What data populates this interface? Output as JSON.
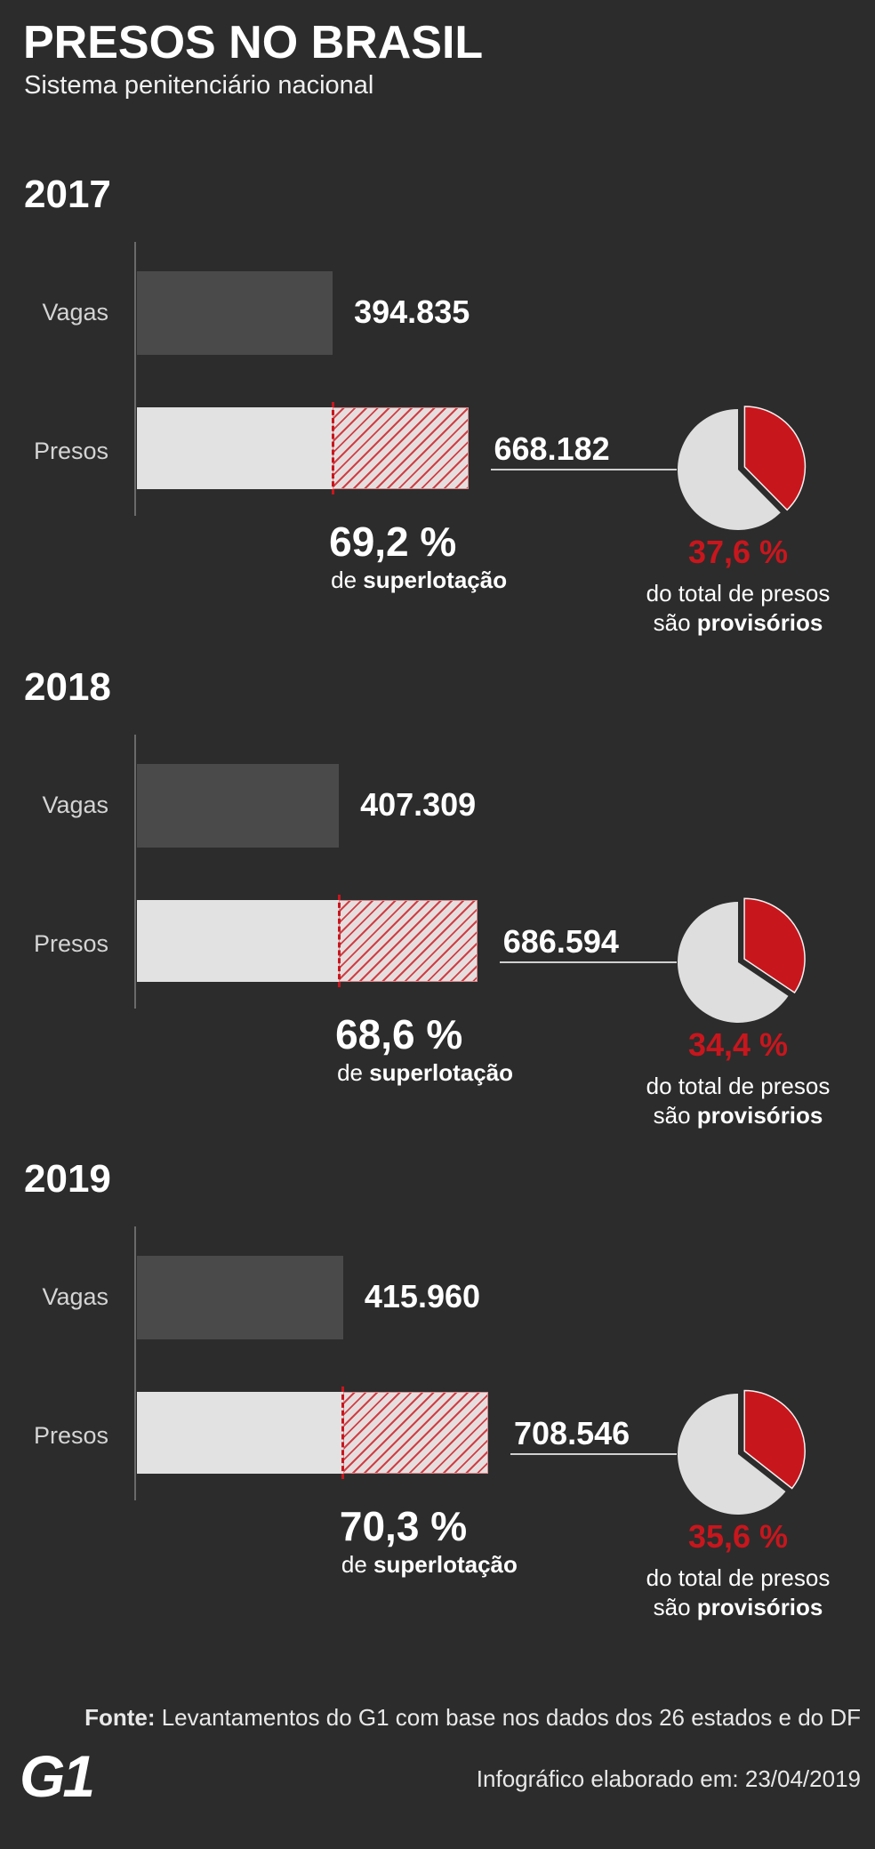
{
  "header": {
    "title": "PRESOS NO BRASIL",
    "subtitle": "Sistema penitenciário nacional"
  },
  "labels": {
    "superlotacao_prefix": "de",
    "superlotacao_bold": "superlotação",
    "provisorios_line1": "do total de presos",
    "provisorios_prefix": "são",
    "provisorios_bold": "provisórios"
  },
  "colors": {
    "background": "#2c2c2c",
    "vagas_bar": "#4a4a4a",
    "presos_bar": "#e2e2e2",
    "accent_red": "#c8161d",
    "pie_base": "#dedede",
    "text": "#ffffff"
  },
  "chart_data": [
    {
      "type": "bar",
      "title": "2017",
      "categories": [
        "Vagas",
        "Presos"
      ],
      "values": [
        394835,
        668182
      ],
      "value_labels": [
        "394.835",
        "668.182"
      ],
      "overcrowding_percent": 69.2,
      "overcrowding_label": "69,2 %",
      "pie": {
        "type": "pie",
        "values": [
          37.6,
          62.4
        ],
        "label": "37,6 %"
      }
    },
    {
      "type": "bar",
      "title": "2018",
      "categories": [
        "Vagas",
        "Presos"
      ],
      "values": [
        407309,
        686594
      ],
      "value_labels": [
        "407.309",
        "686.594"
      ],
      "overcrowding_percent": 68.6,
      "overcrowding_label": "68,6 %",
      "pie": {
        "type": "pie",
        "values": [
          34.4,
          65.6
        ],
        "label": "34,4 %"
      }
    },
    {
      "type": "bar",
      "title": "2019",
      "categories": [
        "Vagas",
        "Presos"
      ],
      "values": [
        415960,
        708546
      ],
      "value_labels": [
        "415.960",
        "708.546"
      ],
      "overcrowding_percent": 70.3,
      "overcrowding_label": "70,3 %",
      "pie": {
        "type": "pie",
        "values": [
          35.6,
          64.4
        ],
        "label": "35,6 %"
      }
    }
  ],
  "footer": {
    "source_label": "Fonte:",
    "source_text": "Levantamentos do G1 com base nos dados dos 26 estados e do DF",
    "date_text": "Infográfico elaborado em: 23/04/2019",
    "logo": "G1"
  }
}
